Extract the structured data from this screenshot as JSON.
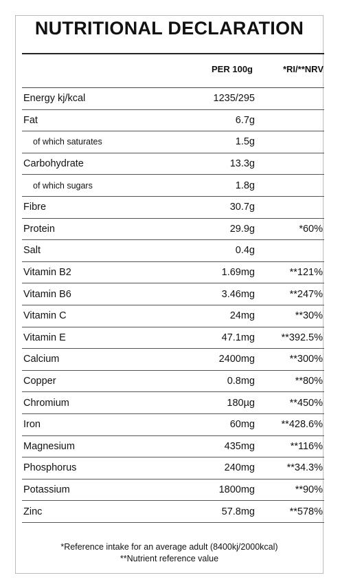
{
  "title": "NUTRITIONAL DECLARATION",
  "header": [
    "PER 100g",
    "*RI/**NRV"
  ],
  "rows": [
    {
      "label": "Energy kj/kcal",
      "per_100g": "1235/295"
    },
    {
      "label": "Fat",
      "per_100g": "6.7g"
    },
    {
      "label": "of which saturates",
      "per_100g": "1.5g"
    },
    {
      "label": "Carbohydrate",
      "per_100g": "13.3g"
    },
    {
      "label": "of which sugars",
      "per_100g": "1.8g"
    },
    {
      "label": "Fibre",
      "per_100g": "30.7g"
    },
    {
      "label": "Protein",
      "per_100g": "29.9g",
      "ri": "*60%"
    },
    {
      "label": "Salt",
      "per_100g": "0.4g"
    },
    {
      "label": "Vitamin B2",
      "per_100g": "1.69mg",
      "ri": "**121%"
    },
    {
      "label": "Vitamin B6",
      "per_100g": "3.46mg",
      "ri": "**247%"
    },
    {
      "label": "Vitamin C",
      "per_100g": "24mg",
      "ri": "**30%"
    },
    {
      "label": "Vitamin E",
      "per_100g": "47.1mg",
      "ri": "**392.5%"
    },
    {
      "label": "Calcium",
      "per_100g": "2400mg",
      "ri": "**300%"
    },
    {
      "label": "Copper",
      "per_100g": "0.8mg",
      "ri": "**80%"
    },
    {
      "label": "Chromium",
      "per_100g": "180µg",
      "ri": "**450%"
    },
    {
      "label": "Iron",
      "per_100g": "60mg",
      "ri": "**428.6%"
    },
    {
      "label": "Magnesium",
      "per_100g": "435mg",
      "ri": "**116%"
    },
    {
      "label": "Phosphorus",
      "per_100g": "240mg",
      "ri": "**34.3%"
    },
    {
      "label": "Potassium",
      "per_100g": "1800mg",
      "ri": "**90%"
    },
    {
      "label": "Zinc",
      "per_100g": "57.8mg",
      "ri": "**578%"
    }
  ],
  "footnotes": [
    "*Reference intake for an average adult (8400kj/2000kcal)",
    "**Nutrient reference value"
  ]
}
